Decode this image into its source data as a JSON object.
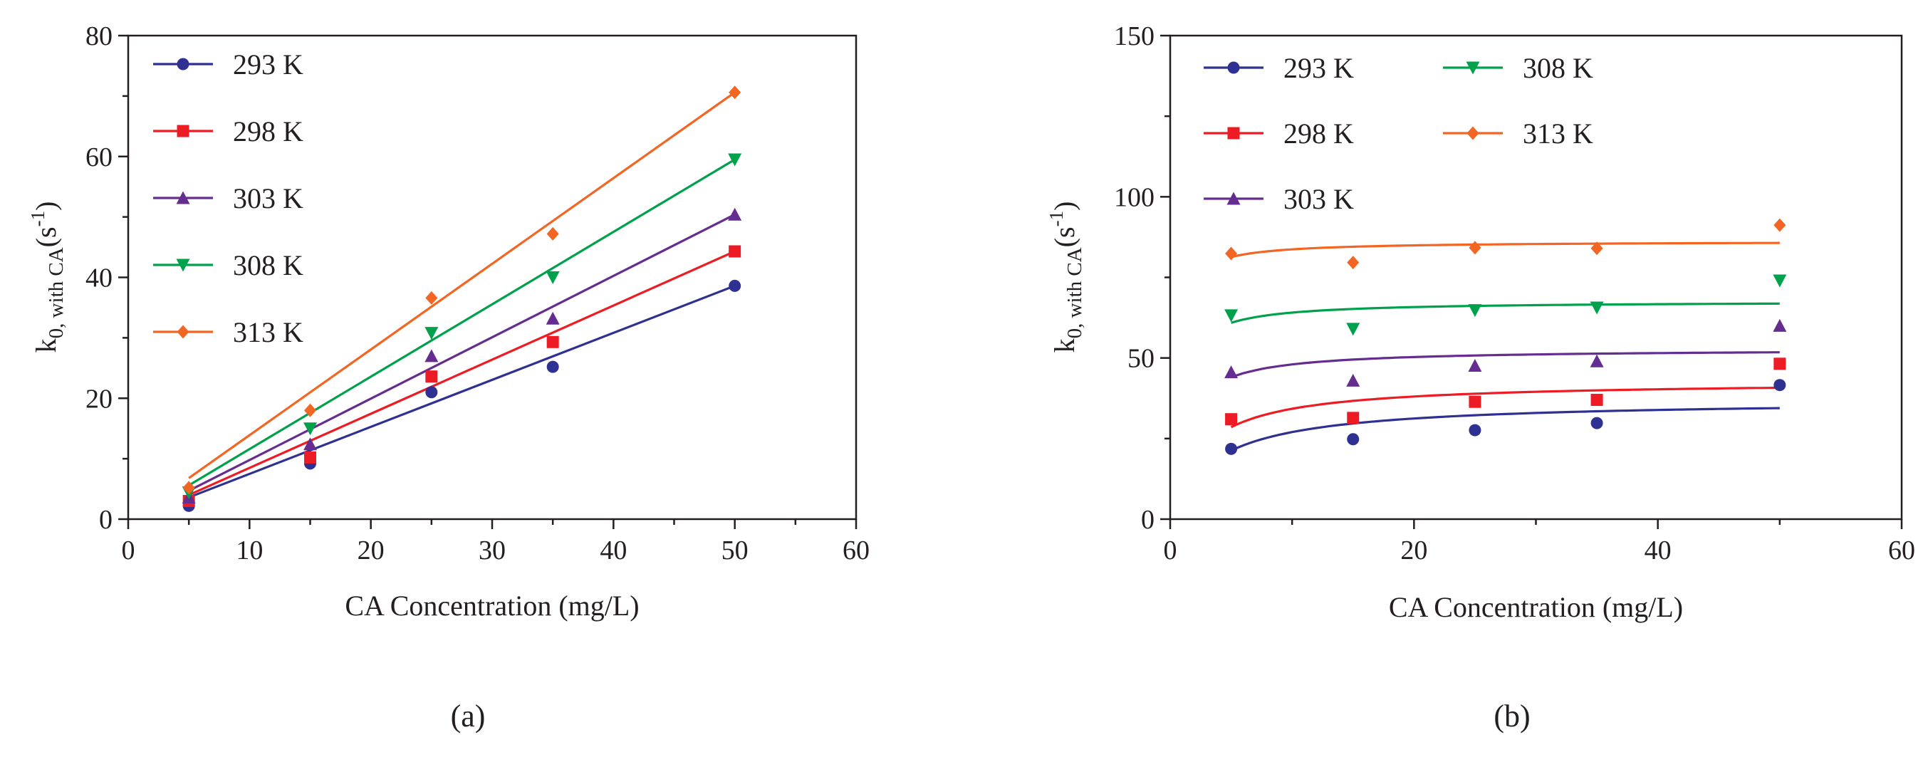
{
  "figure": {
    "panel_labels": [
      "(a)",
      "(b)"
    ]
  },
  "chart_data": [
    {
      "type": "line",
      "panel": "(a)",
      "xlabel": "CA Concentration (mg/L)",
      "ylabel": {
        "main": "k",
        "sub": "0, with CA",
        "unit_open": "(s",
        "unit_sup": "-1",
        "unit_close": ")"
      },
      "xlim": [
        0,
        60
      ],
      "ylim": [
        0,
        80
      ],
      "xticks": [
        0,
        10,
        20,
        30,
        40,
        50,
        60
      ],
      "yticks": [
        0,
        20,
        40,
        60,
        80
      ],
      "x_minor_step": 5,
      "y_minor_step": 10,
      "grid": false,
      "legend_position": "top-left",
      "legend_columns": 1,
      "x": [
        5,
        15,
        25,
        35,
        50
      ],
      "series": [
        {
          "name": "293 K",
          "color": "#2e3192",
          "marker": "circle",
          "points": [
            2.2,
            9.2,
            21.0,
            25.2,
            38.6
          ],
          "fit": [
            3.6,
            38.6
          ]
        },
        {
          "name": "298 K",
          "color": "#ed1c24",
          "marker": "square",
          "points": [
            3.0,
            10.2,
            23.6,
            29.3,
            44.3
          ],
          "fit": [
            4.0,
            44.3
          ]
        },
        {
          "name": "303 K",
          "color": "#662d91",
          "marker": "triangle-up",
          "points": [
            3.6,
            12.4,
            27.0,
            33.2,
            50.4
          ],
          "fit": [
            4.7,
            50.4
          ]
        },
        {
          "name": "308 K",
          "color": "#00a14b",
          "marker": "triangle-down",
          "points": [
            4.4,
            15.0,
            30.8,
            40.0,
            59.5
          ],
          "fit": [
            5.6,
            59.5
          ]
        },
        {
          "name": "313 K",
          "color": "#f26522",
          "marker": "diamond",
          "points": [
            5.2,
            18.0,
            36.6,
            47.2,
            70.6
          ],
          "fit": [
            6.8,
            70.6
          ]
        }
      ]
    },
    {
      "type": "line",
      "panel": "(b)",
      "xlabel": "CA Concentration (mg/L)",
      "ylabel": {
        "main": "k",
        "sub": "0, with CA",
        "unit_open": "(s",
        "unit_sup": "-1",
        "unit_close": ")"
      },
      "xlim": [
        0,
        60
      ],
      "ylim": [
        0,
        150
      ],
      "xticks": [
        0,
        20,
        40,
        60
      ],
      "yticks": [
        0,
        50,
        100,
        150
      ],
      "x_minor_step": 10,
      "y_minor_step": 25,
      "grid": false,
      "legend_position": "top-left",
      "legend_columns": 2,
      "x": [
        5,
        15,
        25,
        35,
        50
      ],
      "series": [
        {
          "name": "293 K",
          "color": "#2e3192",
          "marker": "circle",
          "points": [
            21.8,
            24.8,
            27.6,
            29.8,
            41.6
          ],
          "fit_asymptote": 37.0,
          "fit_k": 3.7
        },
        {
          "name": "298 K",
          "color": "#ed1c24",
          "marker": "square",
          "points": [
            31.0,
            31.4,
            36.4,
            37.0,
            48.2
          ],
          "fit_asymptote": 42.8,
          "fit_k": 2.5
        },
        {
          "name": "303 K",
          "color": "#662d91",
          "marker": "triangle-up",
          "points": [
            45.6,
            43.0,
            47.6,
            49.0,
            60.0
          ],
          "fit_asymptote": 52.8,
          "fit_k": 1.0
        },
        {
          "name": "308 K",
          "color": "#00a14b",
          "marker": "triangle-down",
          "points": [
            63.2,
            59.0,
            64.8,
            65.6,
            74.0
          ],
          "fit_asymptote": 67.6,
          "fit_k": 0.55
        },
        {
          "name": "313 K",
          "color": "#f26522",
          "marker": "diamond",
          "points": [
            82.4,
            79.6,
            84.2,
            84.0,
            91.2
          ],
          "fit_asymptote": 86.2,
          "fit_k": 0.3
        }
      ]
    }
  ]
}
